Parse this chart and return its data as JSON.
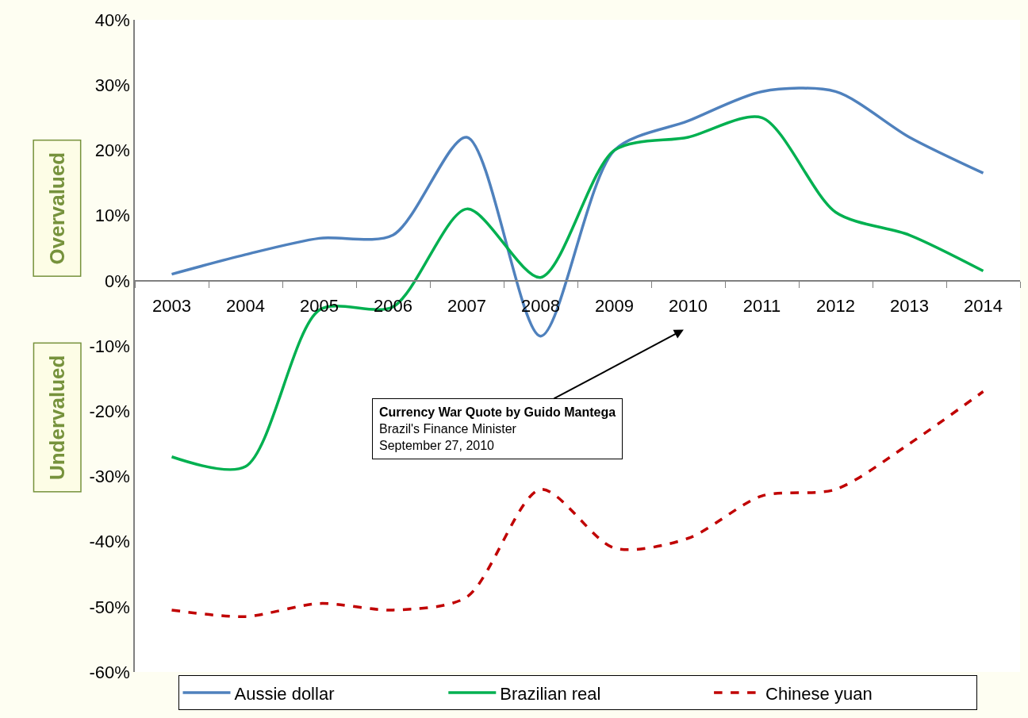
{
  "chart_data": {
    "type": "line",
    "categories": [
      "2003",
      "2004",
      "2005",
      "2006",
      "2007",
      "2008",
      "2009",
      "2010",
      "2011",
      "2012",
      "2013",
      "2014"
    ],
    "series": [
      {
        "name": "Aussie dollar",
        "color": "#4f81bd",
        "line_style": "solid",
        "values": [
          1,
          4,
          6.5,
          7,
          22,
          -8.5,
          20,
          24.5,
          29,
          29,
          22,
          16.5
        ]
      },
      {
        "name": "Brazilian real",
        "color": "#00b050",
        "line_style": "solid",
        "values": [
          -27,
          -28.5,
          -4.5,
          -4,
          11,
          0.5,
          20,
          22,
          25,
          10.5,
          7,
          1.5
        ]
      },
      {
        "name": "Chinese yuan",
        "color": "#c00000",
        "line_style": "dashed",
        "values": [
          -50.5,
          -51.5,
          -49.5,
          -50.5,
          -48.5,
          -32,
          -41,
          -39.5,
          -33,
          -32,
          -25,
          -17
        ]
      }
    ],
    "ylim": [
      -60,
      40
    ],
    "yticks": [
      {
        "value": -60,
        "label": "-60%"
      },
      {
        "value": -50,
        "label": "-50%"
      },
      {
        "value": -40,
        "label": "-40%"
      },
      {
        "value": -30,
        "label": "-30%"
      },
      {
        "value": -20,
        "label": "-20%"
      },
      {
        "value": -10,
        "label": "-10%"
      },
      {
        "value": 0,
        "label": "0%"
      },
      {
        "value": 10,
        "label": "10%"
      },
      {
        "value": 20,
        "label": "20%"
      },
      {
        "value": 30,
        "label": "30%"
      },
      {
        "value": 40,
        "label": "40%"
      }
    ],
    "annotations": [
      "Overvalued",
      "Undervalued",
      "Currency War Quote by Guido Mantega\nBrazil's Finance Minister\nSeptember 27, 2010"
    ],
    "legend": "bottom",
    "marker": "none"
  }
}
